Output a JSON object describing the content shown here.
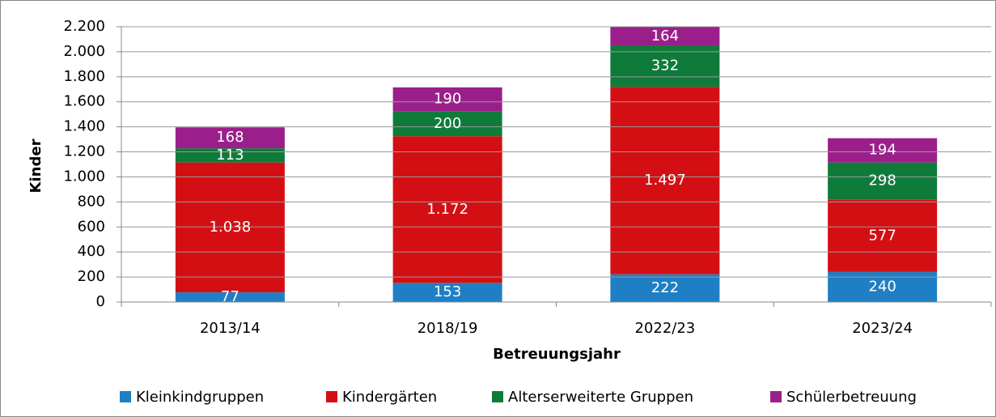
{
  "chart_data": {
    "type": "bar",
    "stacked": true,
    "categories": [
      "2013/14",
      "2018/19",
      "2022/23",
      "2023/24"
    ],
    "series": [
      {
        "name": "Kleinkindgruppen",
        "color": "#1f7fc4",
        "values": [
          77,
          153,
          222,
          240
        ]
      },
      {
        "name": "Kindergärten",
        "color": "#d40f14",
        "values": [
          1038,
          1172,
          1497,
          577
        ],
        "value_labels": [
          "1.038",
          "1.172",
          "1.497",
          "577"
        ]
      },
      {
        "name": "Alterserweiterte Gruppen",
        "color": "#0f7b3b",
        "values": [
          113,
          200,
          332,
          298
        ]
      },
      {
        "name": "Schülerbetreuung",
        "color": "#9b1f8a",
        "values": [
          168,
          190,
          164,
          194
        ]
      }
    ],
    "y_label": "Kinder",
    "x_label": "Betreuungsjahr",
    "ylim": [
      0,
      2200
    ],
    "yticks": [
      0,
      200,
      400,
      600,
      800,
      {
        "value": 1000,
        "label": "1.000"
      },
      {
        "value": 1200,
        "label": "1.200"
      },
      {
        "value": 1400,
        "label": "1.400"
      },
      {
        "value": 1600,
        "label": "1.600"
      },
      {
        "value": 1800,
        "label": "1.800"
      },
      {
        "value": 2000,
        "label": "2.000"
      },
      {
        "value": 2200,
        "label": "2.200"
      }
    ],
    "grid": true,
    "legend": "bottom"
  }
}
